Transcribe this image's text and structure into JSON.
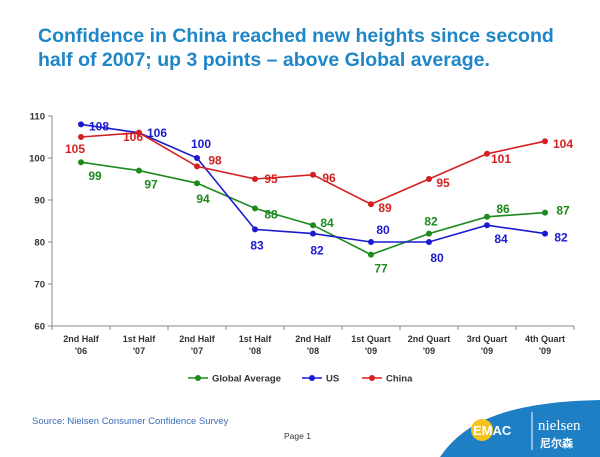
{
  "title": "Confidence in China reached new heights since second half of 2007; up 3 points – above Global average.",
  "source": "Source: Nielsen Consumer Confidence Survey",
  "page_label": "Page 1",
  "logos": {
    "left_text": "EMAC",
    "right_text": "nielsen",
    "right_subtext": "尼尔森"
  },
  "colors": {
    "global": "#1c8a1c",
    "us": "#1a1ad0",
    "china": "#d42020",
    "title": "#1f86c8"
  },
  "chart_data": {
    "type": "line",
    "categories": [
      [
        "2nd Half",
        "'06"
      ],
      [
        "1st Half",
        "'07"
      ],
      [
        "2nd Half",
        "'07"
      ],
      [
        "1st Half",
        "'08"
      ],
      [
        "2nd Half",
        "'08"
      ],
      [
        "1st Quart",
        "'09"
      ],
      [
        "2nd Quart",
        "'09"
      ],
      [
        "3rd Quart",
        "'09"
      ],
      [
        "4th Quart",
        "'09"
      ]
    ],
    "ylim": [
      60,
      110
    ],
    "yticks": [
      60,
      70,
      80,
      90,
      100,
      110
    ],
    "legend_position": "bottom",
    "series": [
      {
        "key": "global",
        "name": "Global Average",
        "values": [
          99,
          97,
          94,
          88,
          84,
          77,
          82,
          86,
          87
        ]
      },
      {
        "key": "us",
        "name": "US",
        "values": [
          108,
          106,
          100,
          83,
          82,
          80,
          80,
          84,
          82
        ]
      },
      {
        "key": "china",
        "name": "China",
        "values": [
          105,
          106,
          98,
          95,
          96,
          89,
          95,
          101,
          104
        ]
      }
    ]
  }
}
